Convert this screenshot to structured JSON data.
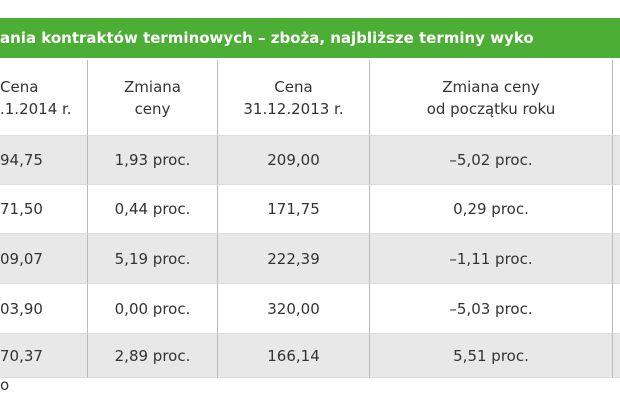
{
  "title": "ania kontraktów terminowych – zboża, najbliższe terminy wyko",
  "table": {
    "header": [
      [
        "Cena",
        ".1.2014 r."
      ],
      [
        "Zmiana",
        "ceny"
      ],
      [
        "Cena",
        "31.12.2013 r."
      ],
      [
        "Zmiana ceny",
        "od początku roku"
      ],
      [
        ""
      ]
    ],
    "rows": [
      [
        "94,75",
        "1,93 proc.",
        "209,00",
        "–5,02 proc."
      ],
      [
        "71,50",
        "0,44 proc.",
        "171,75",
        "0,29 proc."
      ],
      [
        "09,07",
        "5,19 proc.",
        "222,39",
        "–1,11 proc."
      ],
      [
        "03,90",
        "0,00 proc.",
        "320,00",
        "–5,03 proc."
      ],
      [
        "70,37",
        "2,89 proc.",
        "166,14",
        "5,51 proc."
      ]
    ]
  },
  "footer": "o"
}
